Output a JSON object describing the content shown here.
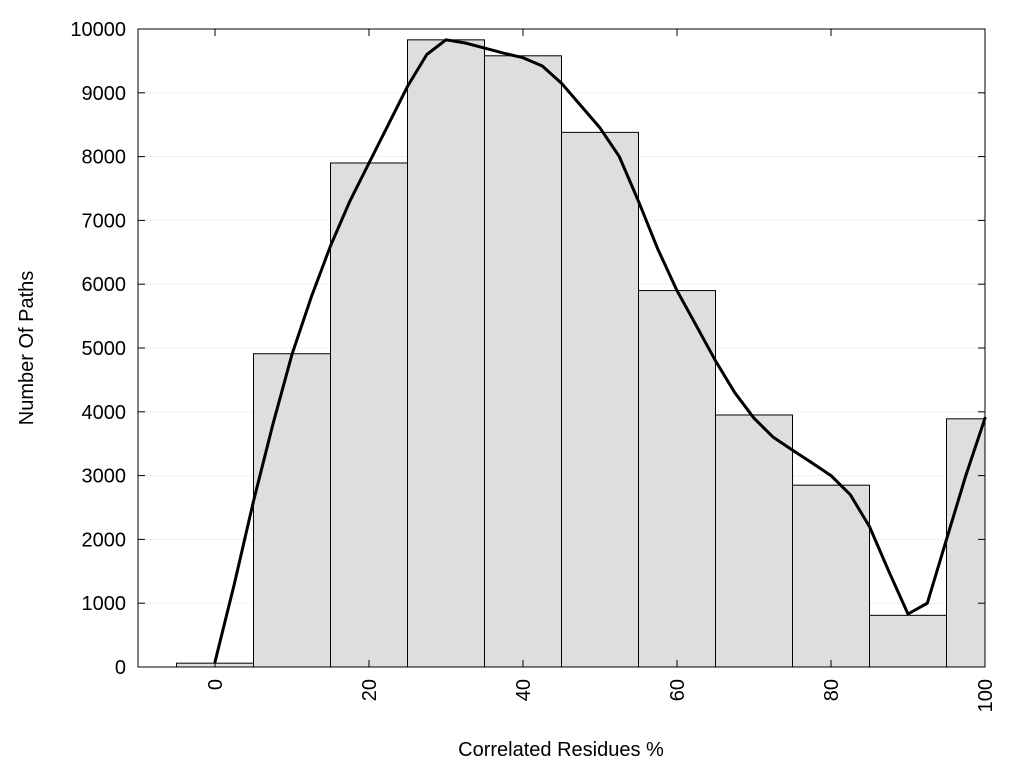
{
  "chart_data": {
    "type": "bar",
    "title": "",
    "xlabel": "Correlated Residues %",
    "ylabel": "Number Of Paths",
    "xlim": [
      -10,
      100
    ],
    "ylim": [
      0,
      10000
    ],
    "grid": "horizontal dotted",
    "bar_color": "#dedede",
    "line_color": "#000000",
    "x_ticks": [
      "0",
      "20",
      "40",
      "60",
      "80",
      "100"
    ],
    "y_ticks": [
      "0",
      "1000",
      "2000",
      "3000",
      "4000",
      "5000",
      "6000",
      "7000",
      "8000",
      "9000",
      "10000"
    ],
    "bins": [
      {
        "from": -5,
        "to": 5,
        "value": 60
      },
      {
        "from": 5,
        "to": 15,
        "value": 4910
      },
      {
        "from": 15,
        "to": 25,
        "value": 7900
      },
      {
        "from": 25,
        "to": 35,
        "value": 9830
      },
      {
        "from": 35,
        "to": 45,
        "value": 9580
      },
      {
        "from": 45,
        "to": 55,
        "value": 8380
      },
      {
        "from": 55,
        "to": 65,
        "value": 5900
      },
      {
        "from": 65,
        "to": 75,
        "value": 3950
      },
      {
        "from": 75,
        "to": 85,
        "value": 2850
      },
      {
        "from": 85,
        "to": 95,
        "value": 810
      },
      {
        "from": 95,
        "to": 100,
        "value": 3890
      }
    ],
    "curve": {
      "x": [
        0,
        2.5,
        5,
        7.5,
        10,
        12.5,
        15,
        17.5,
        20,
        22.5,
        25,
        27.5,
        30,
        32.5,
        35,
        37.5,
        40,
        42.5,
        45,
        47.5,
        50,
        52.5,
        55,
        57.5,
        60,
        62.5,
        65,
        67.5,
        70,
        72.5,
        75,
        77.5,
        80,
        82.5,
        85,
        87.5,
        90,
        92.5,
        95,
        97.5,
        100
      ],
      "y": [
        80,
        1300,
        2600,
        3800,
        4900,
        5800,
        6600,
        7300,
        7900,
        8500,
        9100,
        9600,
        9830,
        9780,
        9700,
        9620,
        9550,
        9420,
        9150,
        8800,
        8450,
        8000,
        7300,
        6550,
        5900,
        5350,
        4800,
        4300,
        3900,
        3600,
        3400,
        3200,
        3000,
        2700,
        2200,
        1500,
        830,
        1000,
        2000,
        3000,
        3900
      ]
    }
  }
}
